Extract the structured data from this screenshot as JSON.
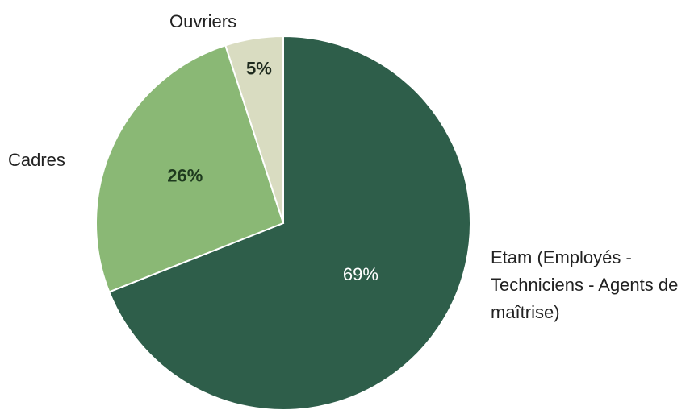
{
  "chart_data": {
    "type": "pie",
    "categories": [
      "Etam (Employés - Techniciens - Agents de maîtrise)",
      "Cadres",
      "Ouvriers"
    ],
    "values": [
      69,
      26,
      5
    ],
    "value_labels": [
      "69%",
      "26%",
      "5%"
    ],
    "colors": [
      "#2e5e4a",
      "#8ab875",
      "#d9dcc1"
    ]
  }
}
